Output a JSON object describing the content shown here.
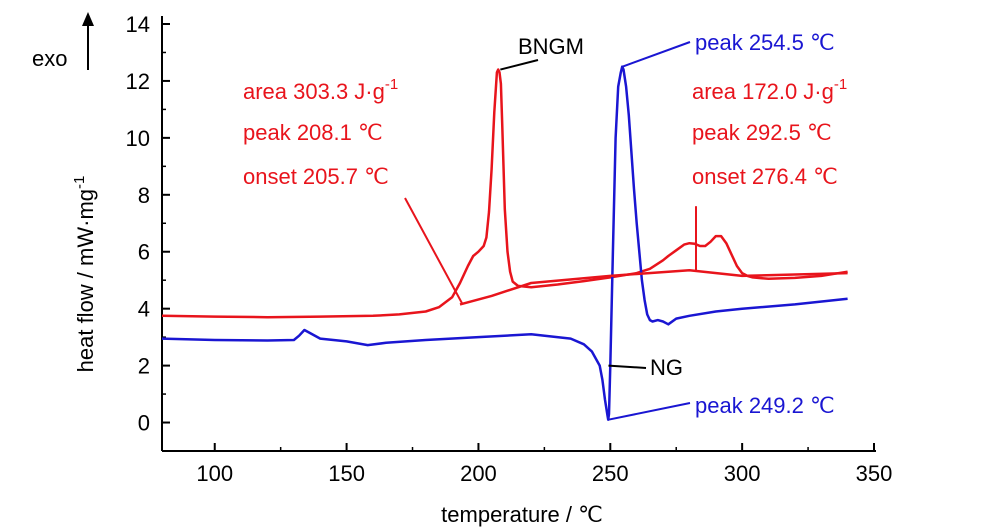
{
  "chart_data": {
    "type": "line",
    "xlabel": "temperature / ℃",
    "ylabel": "heat flow / mW·mg",
    "ylabel_sup": "-1",
    "exo_label": "exo",
    "xlim": [
      80,
      350
    ],
    "ylim": [
      -1,
      14
    ],
    "xticks": [
      100,
      150,
      200,
      250,
      300,
      350
    ],
    "yticks": [
      0,
      2,
      4,
      6,
      8,
      10,
      12,
      14
    ],
    "grid": false,
    "series": [
      {
        "name": "BNGM",
        "color": "#e8141c",
        "x": [
          80,
          100,
          120,
          140,
          160,
          170,
          180,
          185,
          190,
          193,
          196,
          198,
          200,
          202,
          203,
          204,
          205,
          206,
          207,
          207.5,
          208,
          208.5,
          209,
          209.5,
          210,
          211,
          212,
          213,
          215,
          220,
          230,
          240,
          250,
          260,
          265,
          270,
          272,
          275,
          278,
          280,
          282,
          284,
          286,
          288,
          290,
          292,
          294,
          296,
          298,
          300,
          302,
          304,
          310,
          320,
          330,
          340
        ],
        "y": [
          3.75,
          3.72,
          3.7,
          3.72,
          3.75,
          3.8,
          3.9,
          4.05,
          4.4,
          4.9,
          5.5,
          5.85,
          6.0,
          6.2,
          6.5,
          7.4,
          8.9,
          10.9,
          12.3,
          12.4,
          12.3,
          11.9,
          10.5,
          9.0,
          7.5,
          6.0,
          5.3,
          4.95,
          4.8,
          4.75,
          4.85,
          4.97,
          5.1,
          5.25,
          5.4,
          5.7,
          5.85,
          6.05,
          6.25,
          6.3,
          6.28,
          6.2,
          6.2,
          6.35,
          6.55,
          6.55,
          6.3,
          5.9,
          5.5,
          5.25,
          5.15,
          5.1,
          5.05,
          5.08,
          5.15,
          5.3
        ]
      },
      {
        "name": "NG",
        "color": "#1a16d2",
        "x": [
          80,
          100,
          120,
          130,
          132,
          134,
          136,
          140,
          150,
          158,
          165,
          180,
          200,
          220,
          235,
          240,
          243,
          246,
          247,
          248,
          249,
          249.2,
          249.5,
          250,
          251,
          252,
          253,
          254,
          254.5,
          255,
          256,
          257,
          258,
          259,
          260,
          261,
          262,
          263,
          264,
          265,
          266,
          268,
          270,
          272,
          275,
          280,
          290,
          300,
          320,
          340
        ],
        "y": [
          2.95,
          2.9,
          2.88,
          2.9,
          3.05,
          3.25,
          3.15,
          2.95,
          2.85,
          2.72,
          2.8,
          2.9,
          3.0,
          3.1,
          2.95,
          2.75,
          2.5,
          2.0,
          1.5,
          0.8,
          0.2,
          0.1,
          0.3,
          2.0,
          6.0,
          10.0,
          11.8,
          12.3,
          12.5,
          12.4,
          11.8,
          10.8,
          9.5,
          8.2,
          7.0,
          6.0,
          5.0,
          4.3,
          3.8,
          3.6,
          3.55,
          3.6,
          3.55,
          3.45,
          3.65,
          3.75,
          3.9,
          4.0,
          4.15,
          4.35
        ]
      },
      {
        "name": "",
        "color": "#e8141c",
        "x": [
          193,
          205,
          220,
          250,
          280,
          300,
          340
        ],
        "y": [
          4.15,
          4.45,
          4.9,
          5.15,
          5.35,
          5.15,
          5.25
        ]
      }
    ],
    "annotations": [
      {
        "text": "BNGM",
        "color": "#000000"
      },
      {
        "text": "NG",
        "color": "#000000"
      },
      {
        "text": "area 303.3 J·g",
        "sup": "-1",
        "color": "#e8141c"
      },
      {
        "text": "peak 208.1 ℃",
        "color": "#e8141c"
      },
      {
        "text": "onset 205.7 ℃",
        "color": "#e8141c"
      },
      {
        "text": "area 172.0 J·g",
        "sup": "-1",
        "color": "#e8141c"
      },
      {
        "text": "peak 292.5 ℃",
        "color": "#e8141c"
      },
      {
        "text": "onset 276.4 ℃",
        "color": "#e8141c"
      },
      {
        "text": "peak 254.5 ℃",
        "color": "#1a16d2"
      },
      {
        "text": "peak 249.2 ℃",
        "color": "#1a16d2"
      }
    ]
  }
}
